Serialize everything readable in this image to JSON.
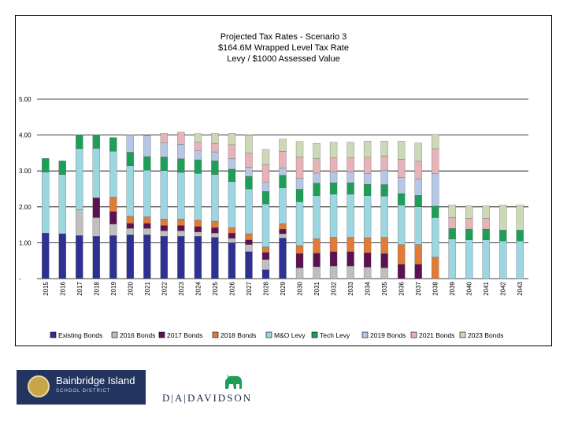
{
  "chart_data": {
    "type": "bar",
    "stacked": true,
    "title": [
      "Projected Tax Rates - Scenario 3",
      "$164.6M Wrapped Level Tax Rate",
      "Levy / $1000 Assessed Value"
    ],
    "categories": [
      "2015",
      "2016",
      "2017",
      "2018",
      "2019",
      "2020",
      "2021",
      "2022",
      "2023",
      "2024",
      "2025",
      "2026",
      "2027",
      "2028",
      "2029",
      "2030",
      "2031",
      "2032",
      "2033",
      "2034",
      "2035",
      "2036",
      "2037",
      "2038",
      "2039",
      "2040",
      "2041",
      "2042",
      "2043"
    ],
    "ylim": [
      0,
      5
    ],
    "yticks": [
      0,
      1,
      2,
      3,
      4,
      5
    ],
    "ytick_labels": [
      "-",
      "1.00",
      "2.00",
      "3.00",
      "4.00",
      "5.00"
    ],
    "grid": true,
    "legend_position": "bottom",
    "series": [
      {
        "name": "Existing Bonds",
        "color": "#2e3192",
        "values": [
          1.27,
          1.25,
          1.2,
          1.18,
          1.2,
          1.22,
          1.22,
          1.18,
          1.18,
          1.18,
          1.15,
          1.0,
          0.75,
          0.25,
          1.13,
          0,
          0,
          0,
          0,
          0,
          0,
          0,
          0,
          0,
          0,
          0,
          0,
          0,
          0
        ]
      },
      {
        "name": "2016 Bonds",
        "color": "#bfbfbf",
        "values": [
          0,
          0,
          0.72,
          0.52,
          0.32,
          0.18,
          0.18,
          0.15,
          0.15,
          0.12,
          0.12,
          0.12,
          0.2,
          0.28,
          0.12,
          0.3,
          0.33,
          0.35,
          0.35,
          0.32,
          0.3,
          0,
          0,
          0,
          0,
          0,
          0,
          0,
          0
        ]
      },
      {
        "name": "2017 Bonds",
        "color": "#5c1150",
        "values": [
          0,
          0,
          0,
          0.55,
          0.35,
          0.14,
          0.14,
          0.15,
          0.15,
          0.15,
          0.15,
          0.15,
          0.13,
          0.2,
          0.13,
          0.4,
          0.38,
          0.4,
          0.4,
          0.4,
          0.4,
          0.4,
          0.4,
          0,
          0,
          0,
          0,
          0,
          0
        ]
      },
      {
        "name": "2018 Bonds",
        "color": "#e07b39",
        "values": [
          0,
          0,
          0,
          0,
          0.4,
          0.2,
          0.18,
          0.18,
          0.18,
          0.18,
          0.18,
          0.15,
          0.17,
          0.15,
          0.15,
          0.22,
          0.4,
          0.4,
          0.4,
          0.42,
          0.45,
          0.55,
          0.55,
          0.6,
          0,
          0,
          0,
          0,
          0
        ]
      },
      {
        "name": "M&O Levy",
        "color": "#9cd6e0",
        "values": [
          1.7,
          1.65,
          1.7,
          1.38,
          1.28,
          1.4,
          1.3,
          1.35,
          1.3,
          1.3,
          1.3,
          1.28,
          1.25,
          1.2,
          1.0,
          1.22,
          1.2,
          1.2,
          1.2,
          1.17,
          1.15,
          1.1,
          1.05,
          1.1,
          1.1,
          1.08,
          1.08,
          1.05,
          1.05
        ]
      },
      {
        "name": "Tech Levy",
        "color": "#1e9e57",
        "values": [
          0.38,
          0.38,
          0.38,
          0.38,
          0.38,
          0.38,
          0.38,
          0.38,
          0.38,
          0.38,
          0.38,
          0.35,
          0.35,
          0.35,
          0.35,
          0.35,
          0.35,
          0.32,
          0.32,
          0.32,
          0.32,
          0.32,
          0.32,
          0.32,
          0.3,
          0.3,
          0.3,
          0.3,
          0.3
        ]
      },
      {
        "name": "2019 Bonds",
        "color": "#b5c7e4",
        "values": [
          0,
          0,
          0,
          0,
          0,
          0.48,
          0.58,
          0.4,
          0.4,
          0.25,
          0.25,
          0.3,
          0.25,
          0.25,
          0.2,
          0.3,
          0.28,
          0.3,
          0.3,
          0.3,
          0.4,
          0.45,
          0.45,
          0.9,
          0,
          0,
          0,
          0,
          0
        ]
      },
      {
        "name": "2021 Bonds",
        "color": "#e6b3b8",
        "values": [
          0,
          0,
          0,
          0,
          0,
          0,
          0,
          0.26,
          0.34,
          0.24,
          0.24,
          0.38,
          0.4,
          0.5,
          0.47,
          0.6,
          0.4,
          0.4,
          0.4,
          0.45,
          0.4,
          0.5,
          0.5,
          0.7,
          0.3,
          0.3,
          0.3,
          0,
          0
        ]
      },
      {
        "name": "2023 Bonds",
        "color": "#cdd9b6",
        "values": [
          0,
          0,
          0,
          0,
          0,
          0,
          0,
          0,
          0,
          0.24,
          0.28,
          0.32,
          0.5,
          0.42,
          0.34,
          0.43,
          0.43,
          0.43,
          0.43,
          0.45,
          0.41,
          0.51,
          0.51,
          0.4,
          0.35,
          0.35,
          0.35,
          0.7,
          0.7
        ]
      }
    ]
  },
  "logos": {
    "district_name": "Bainbridge Island",
    "district_sub": "SCHOOL DISTRICT",
    "firm_name": "D|A|DAVIDSON"
  }
}
